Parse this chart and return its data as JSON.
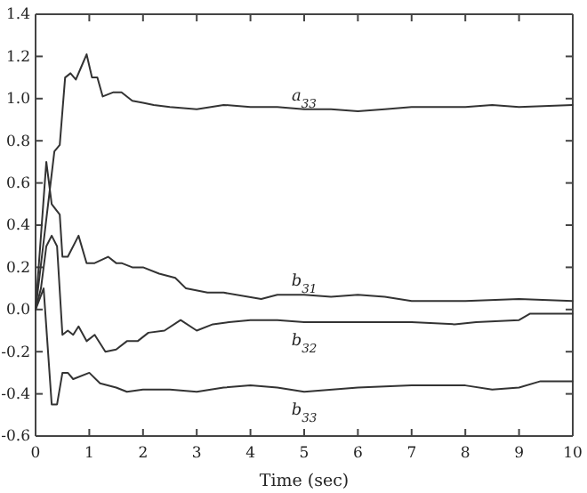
{
  "chart_data": {
    "type": "line",
    "xlabel": "Time (sec)",
    "xlim": [
      0,
      10
    ],
    "ylim": [
      -0.6,
      1.4
    ],
    "xticks": [
      0,
      1,
      2,
      3,
      4,
      5,
      6,
      7,
      8,
      9,
      10
    ],
    "yticks": [
      {
        "value": -0.6,
        "label": "-0.6"
      },
      {
        "value": -0.4,
        "label": "-0.4"
      },
      {
        "value": -0.2,
        "label": "-0.2"
      },
      {
        "value": 0,
        "label": "0.0"
      },
      {
        "value": 0.2,
        "label": "0.2"
      },
      {
        "value": 0.4,
        "label": "0.4"
      },
      {
        "value": 0.6,
        "label": "0.6"
      },
      {
        "value": 0.8,
        "label": "0.8"
      },
      {
        "value": 1,
        "label": "1.0"
      },
      {
        "value": 1.2,
        "label": "1.2"
      },
      {
        "value": 1.4,
        "label": "1.4"
      }
    ],
    "grid": false,
    "legend": false,
    "marker": "none",
    "line_style": "solid",
    "series": [
      {
        "name": "a$_{33}$",
        "color": "#333333",
        "x": [
          0,
          0.35,
          0.45,
          0.55,
          0.65,
          0.75,
          0.85,
          0.95,
          1.05,
          1.15,
          1.25,
          1.45,
          1.6,
          1.8,
          2,
          2.2,
          2.5,
          3,
          3.5,
          4,
          4.5,
          5,
          5.5,
          6,
          6.5,
          7,
          7.5,
          8,
          8.5,
          9,
          10
        ],
        "values": [
          0,
          0.75,
          0.78,
          1.1,
          1.12,
          1.09,
          1.15,
          1.21,
          1.1,
          1.1,
          1.01,
          1.03,
          1.03,
          0.99,
          0.98,
          0.97,
          0.96,
          0.95,
          0.97,
          0.96,
          0.96,
          0.95,
          0.95,
          0.94,
          0.95,
          0.96,
          0.96,
          0.96,
          0.97,
          0.96,
          0.97
        ]
      },
      {
        "name": "b$_{31}$",
        "color": "#333333",
        "x": [
          0,
          0.2,
          0.3,
          0.45,
          0.5,
          0.6,
          0.8,
          0.95,
          1.1,
          1.35,
          1.5,
          1.6,
          1.8,
          2,
          2.3,
          2.6,
          2.8,
          3.2,
          3.5,
          4.2,
          4.5,
          5,
          5.5,
          6,
          6.5,
          7,
          8,
          9,
          10
        ],
        "values": [
          0,
          0.7,
          0.5,
          0.45,
          0.25,
          0.25,
          0.35,
          0.22,
          0.22,
          0.25,
          0.22,
          0.22,
          0.2,
          0.2,
          0.17,
          0.15,
          0.1,
          0.08,
          0.08,
          0.05,
          0.07,
          0.07,
          0.06,
          0.07,
          0.06,
          0.04,
          0.04,
          0.05,
          0.04
        ]
      },
      {
        "name": "b$_{32}$",
        "color": "#333333",
        "x": [
          0,
          0.1,
          0.2,
          0.3,
          0.4,
          0.5,
          0.6,
          0.7,
          0.8,
          0.95,
          1.1,
          1.3,
          1.5,
          1.7,
          1.9,
          2.1,
          2.4,
          2.7,
          3,
          3.3,
          3.6,
          4,
          4.5,
          5,
          6,
          7,
          7.8,
          8.2,
          9,
          9.2,
          10
        ],
        "values": [
          0,
          0.1,
          0.3,
          0.35,
          0.3,
          -0.12,
          -0.1,
          -0.12,
          -0.08,
          -0.15,
          -0.12,
          -0.2,
          -0.19,
          -0.15,
          -0.15,
          -0.11,
          -0.1,
          -0.05,
          -0.1,
          -0.07,
          -0.06,
          -0.05,
          -0.05,
          -0.06,
          -0.06,
          -0.06,
          -0.07,
          -0.06,
          -0.05,
          -0.02,
          -0.02
        ]
      },
      {
        "name": "b$_{33}$",
        "color": "#333333",
        "x": [
          0,
          0.15,
          0.3,
          0.4,
          0.5,
          0.6,
          0.7,
          1,
          1.2,
          1.5,
          1.7,
          2,
          2.5,
          3,
          3.5,
          4,
          4.5,
          5,
          6,
          7,
          8,
          8.5,
          9,
          9.4,
          10
        ],
        "values": [
          0,
          0.1,
          -0.45,
          -0.45,
          -0.3,
          -0.3,
          -0.33,
          -0.3,
          -0.35,
          -0.37,
          -0.39,
          -0.38,
          -0.38,
          -0.39,
          -0.37,
          -0.36,
          -0.37,
          -0.39,
          -0.37,
          -0.36,
          -0.36,
          -0.38,
          -0.37,
          -0.34,
          -0.34
        ]
      }
    ]
  }
}
